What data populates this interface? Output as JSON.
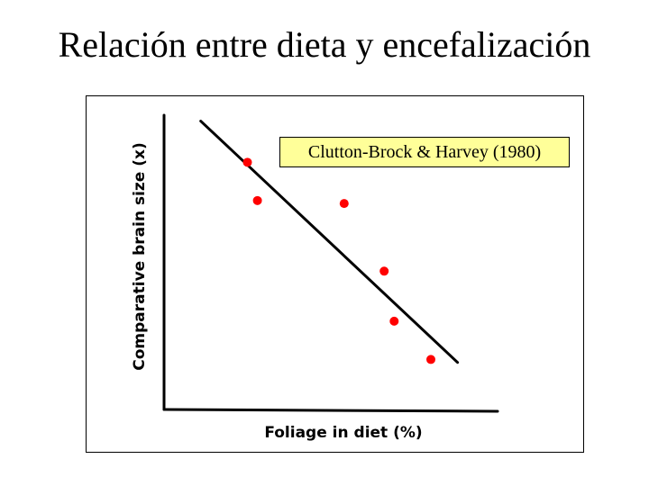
{
  "slide": {
    "title": "Relación entre dieta y encefalización"
  },
  "citation": {
    "text": "Clutton-Brock & Harvey (1980)"
  },
  "chart_data": {
    "type": "scatter",
    "xlabel": "Foliage in diet (%)",
    "ylabel": "Comparative brain size (x)",
    "xlim": [
      0,
      100
    ],
    "ylim": [
      0,
      100
    ],
    "grid": false,
    "tick_labels": false,
    "point_color": "#ff0000",
    "points": [
      {
        "x": 25,
        "y": 84
      },
      {
        "x": 28,
        "y": 71
      },
      {
        "x": 54,
        "y": 70
      },
      {
        "x": 66,
        "y": 47
      },
      {
        "x": 69,
        "y": 30
      },
      {
        "x": 80,
        "y": 17
      }
    ],
    "trend_line": {
      "x": [
        11,
        88
      ],
      "y": [
        98,
        16
      ]
    }
  }
}
